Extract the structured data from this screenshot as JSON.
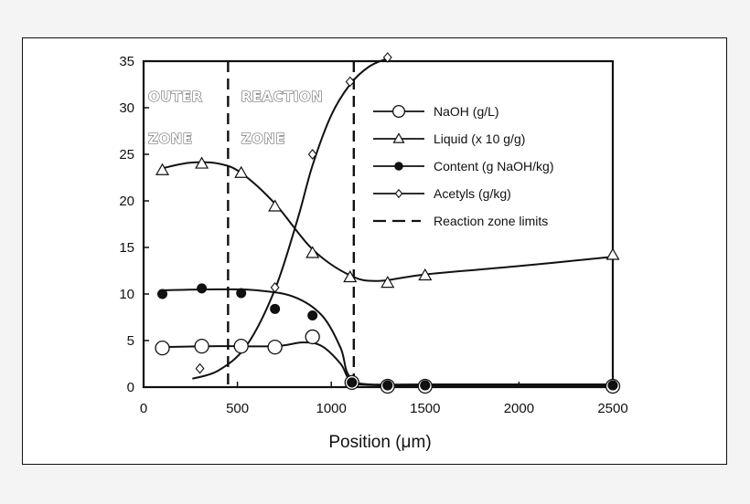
{
  "chart_data": {
    "type": "line",
    "title": "",
    "xlabel": "Position (μm)",
    "ylabel": "",
    "xlim": [
      0,
      2500
    ],
    "ylim": [
      0,
      35
    ],
    "xticks": [
      0,
      500,
      1000,
      1500,
      2000,
      2500
    ],
    "yticks": [
      0,
      5,
      10,
      15,
      20,
      25,
      30,
      35
    ],
    "grid": false,
    "legend_position": "top-right",
    "zone_labels": [
      {
        "lines": [
          "OUTER",
          "ZONE"
        ],
        "x": 10
      },
      {
        "lines": [
          "REACTION",
          "ZONE"
        ],
        "x": 505
      }
    ],
    "reaction_zone_limits": [
      450,
      1120
    ],
    "series": [
      {
        "name": "NaOH (g/L)",
        "marker": "open-circle",
        "points": [
          [
            100,
            4.2
          ],
          [
            310,
            4.4
          ],
          [
            520,
            4.4
          ],
          [
            700,
            4.3
          ],
          [
            900,
            5.4
          ],
          [
            1110,
            0.5
          ],
          [
            1300,
            0.1
          ],
          [
            1500,
            0.1
          ],
          [
            2500,
            0.1
          ]
        ],
        "curve": [
          [
            100,
            4.3
          ],
          [
            400,
            4.4
          ],
          [
            700,
            4.4
          ],
          [
            850,
            4.8
          ],
          [
            950,
            4.4
          ],
          [
            1050,
            2.5
          ],
          [
            1100,
            0.8
          ],
          [
            1200,
            0.3
          ],
          [
            1500,
            0.3
          ],
          [
            2500,
            0.3
          ]
        ]
      },
      {
        "name": "Liquid (x 10 g/g)",
        "marker": "open-triangle",
        "points": [
          [
            100,
            23.3
          ],
          [
            310,
            24.0
          ],
          [
            520,
            23.0
          ],
          [
            700,
            19.4
          ],
          [
            900,
            14.4
          ],
          [
            1100,
            11.8
          ],
          [
            1300,
            11.2
          ],
          [
            1500,
            12.0
          ],
          [
            2500,
            14.2
          ]
        ],
        "curve": [
          [
            100,
            23.5
          ],
          [
            250,
            24.1
          ],
          [
            400,
            24.0
          ],
          [
            520,
            23.0
          ],
          [
            700,
            19.7
          ],
          [
            900,
            14.8
          ],
          [
            1100,
            12.0
          ],
          [
            1250,
            11.4
          ],
          [
            1500,
            12.1
          ],
          [
            2000,
            13.0
          ],
          [
            2500,
            14.0
          ]
        ]
      },
      {
        "name": "Content (g NaOH/kg)",
        "marker": "filled-circle",
        "points": [
          [
            100,
            10.0
          ],
          [
            310,
            10.6
          ],
          [
            520,
            10.1
          ],
          [
            700,
            8.4
          ],
          [
            900,
            7.7
          ],
          [
            1110,
            0.5
          ],
          [
            1300,
            0.2
          ],
          [
            1500,
            0.2
          ],
          [
            2500,
            0.2
          ]
        ],
        "curve": [
          [
            100,
            10.4
          ],
          [
            400,
            10.5
          ],
          [
            600,
            10.4
          ],
          [
            800,
            9.7
          ],
          [
            950,
            7.7
          ],
          [
            1050,
            4.2
          ],
          [
            1100,
            1.1
          ],
          [
            1250,
            0.2
          ],
          [
            2500,
            0.2
          ]
        ]
      },
      {
        "name": "Acetyls (g/kg)",
        "marker": "open-diamond",
        "points": [
          [
            300,
            2.0
          ],
          [
            700,
            10.7
          ],
          [
            900,
            25.0
          ],
          [
            1100,
            32.8
          ],
          [
            1300,
            35.4
          ]
        ],
        "curve": [
          [
            260,
            0.9
          ],
          [
            400,
            1.8
          ],
          [
            550,
            4.5
          ],
          [
            700,
            10.5
          ],
          [
            820,
            18.0
          ],
          [
            900,
            23.8
          ],
          [
            1000,
            29.2
          ],
          [
            1100,
            32.5
          ],
          [
            1200,
            34.4
          ],
          [
            1300,
            35.3
          ]
        ]
      }
    ],
    "legend": [
      {
        "label": "NaOH (g/L)",
        "style": "line-open-circle"
      },
      {
        "label": "Liquid (x 10 g/g)",
        "style": "line-open-triangle"
      },
      {
        "label": "Content (g NaOH/kg)",
        "style": "line-filled-circle"
      },
      {
        "label": "Acetyls (g/kg)",
        "style": "line-open-diamond"
      },
      {
        "label": "Reaction zone limits",
        "style": "dashed-line"
      }
    ]
  }
}
